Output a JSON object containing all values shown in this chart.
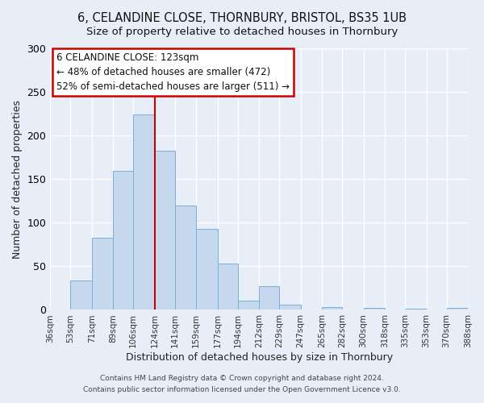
{
  "title": "6, CELANDINE CLOSE, THORNBURY, BRISTOL, BS35 1UB",
  "subtitle": "Size of property relative to detached houses in Thornbury",
  "xlabel": "Distribution of detached houses by size in Thornbury",
  "ylabel": "Number of detached properties",
  "bar_color": "#c5d8ee",
  "bar_edge_color": "#7aafd4",
  "background_color": "#e8eef8",
  "grid_color": "#ffffff",
  "bin_edges": [
    36,
    53,
    71,
    89,
    106,
    124,
    141,
    159,
    177,
    194,
    212,
    229,
    247,
    265,
    282,
    300,
    318,
    335,
    353,
    370,
    388
  ],
  "bin_labels": [
    "36sqm",
    "53sqm",
    "71sqm",
    "89sqm",
    "106sqm",
    "124sqm",
    "141sqm",
    "159sqm",
    "177sqm",
    "194sqm",
    "212sqm",
    "229sqm",
    "247sqm",
    "265sqm",
    "282sqm",
    "300sqm",
    "318sqm",
    "335sqm",
    "353sqm",
    "370sqm",
    "388sqm"
  ],
  "counts": [
    0,
    34,
    83,
    159,
    224,
    183,
    120,
    93,
    53,
    11,
    27,
    6,
    0,
    3,
    0,
    2,
    0,
    1,
    0,
    2
  ],
  "ylim": [
    0,
    300
  ],
  "yticks": [
    0,
    50,
    100,
    150,
    200,
    250,
    300
  ],
  "property_line_x": 124,
  "annotation_title": "6 CELANDINE CLOSE: 123sqm",
  "annotation_line1": "← 48% of detached houses are smaller (472)",
  "annotation_line2": "52% of semi-detached houses are larger (511) →",
  "annotation_box_color": "#ffffff",
  "annotation_box_edge": "#cc0000",
  "property_line_color": "#cc0000",
  "footer_line1": "Contains HM Land Registry data © Crown copyright and database right 2024.",
  "footer_line2": "Contains public sector information licensed under the Open Government Licence v3.0."
}
